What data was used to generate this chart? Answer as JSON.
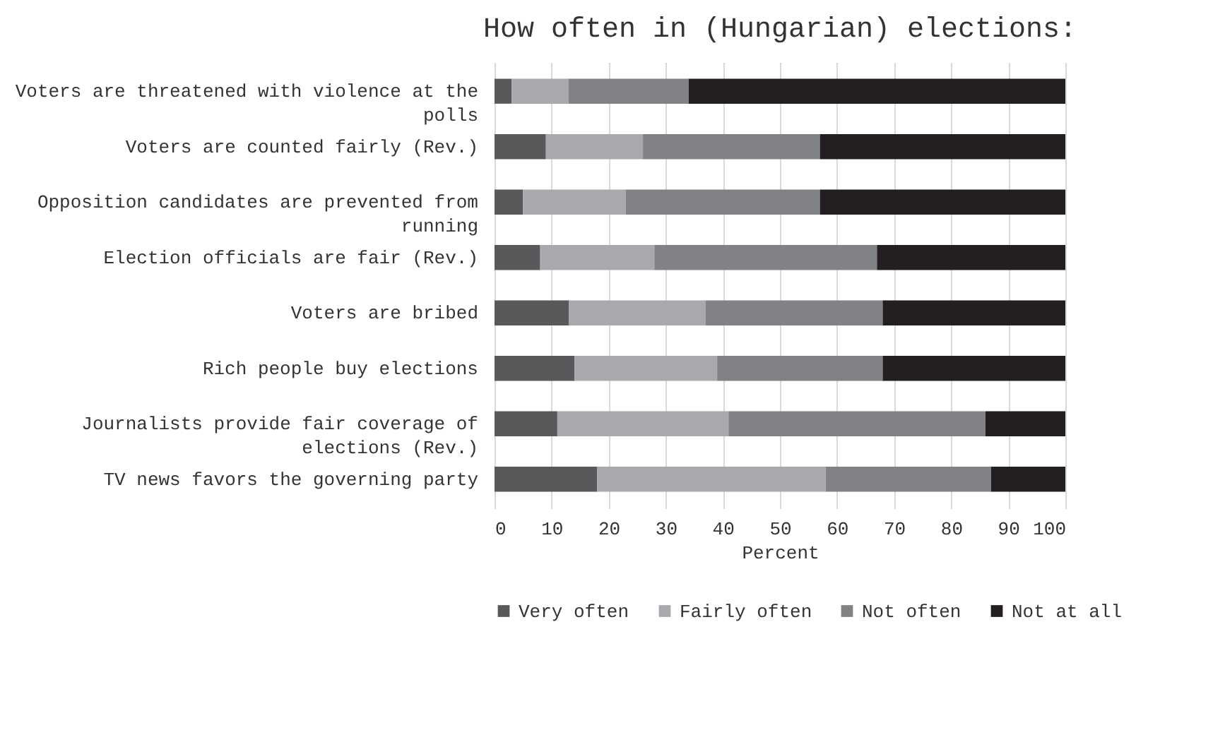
{
  "chart_data": {
    "type": "bar",
    "orientation": "horizontal",
    "stacked": true,
    "title": "How often in (Hungarian) elections:",
    "xlabel": "Percent",
    "categories": [
      "Voters are threatened with violence at the polls",
      "Voters are counted fairly (Rev.)",
      "Opposition candidates are prevented from running",
      "Election officials are fair (Rev.)",
      "Voters are bribed",
      "Rich people buy elections",
      "Journalists provide fair coverage of elections (Rev.)",
      "TV news favors the governing party"
    ],
    "series": [
      {
        "name": "Very often",
        "color": "#58595b",
        "values": [
          3,
          9,
          5,
          8,
          13,
          14,
          11,
          18
        ]
      },
      {
        "name": "Fairly often",
        "color": "#a7a9ac",
        "values": [
          10,
          17,
          18,
          20,
          24,
          25,
          30,
          40
        ]
      },
      {
        "name": "Not often",
        "color": "#808285",
        "values": [
          21,
          31,
          34,
          39,
          31,
          29,
          45,
          29
        ]
      },
      {
        "name": "Not at all",
        "color": "#231f20",
        "values": [
          66,
          43,
          43,
          33,
          32,
          32,
          14,
          13
        ]
      }
    ],
    "xlim": [
      0,
      100
    ],
    "xticks": [
      0,
      10,
      20,
      30,
      40,
      50,
      60,
      70,
      80,
      90,
      100
    ],
    "grid": "x",
    "legend": "bottom"
  }
}
